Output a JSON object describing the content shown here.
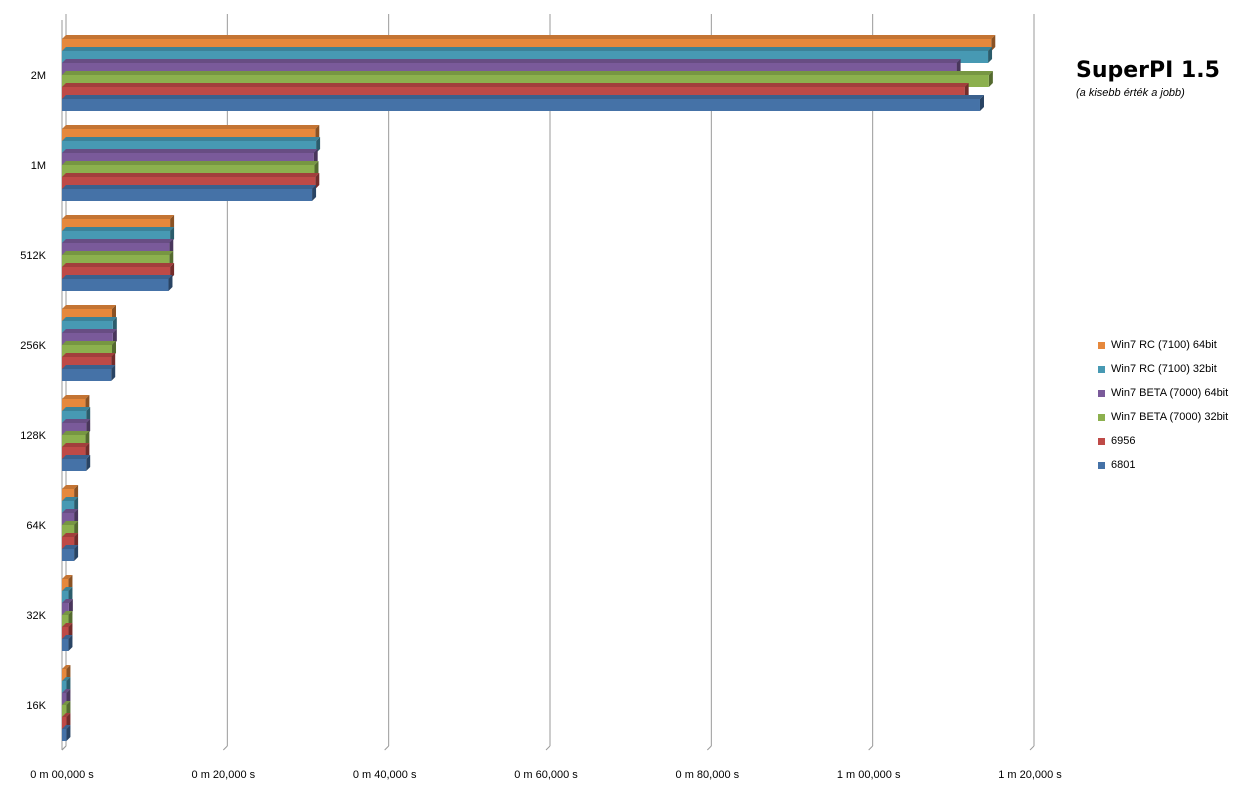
{
  "chart_data": {
    "type": "bar",
    "orientation": "horizontal",
    "title": "SuperPI 1.5",
    "subtitle": "(a kisebb érték a jobb)",
    "categories": [
      "2M",
      "1M",
      "512K",
      "256K",
      "128K",
      "64K",
      "32K",
      "16K"
    ],
    "x_tick_labels": [
      "0 m 00,000 s",
      "0 m 20,000 s",
      "0 m 40,000 s",
      "0 m 60,000 s",
      "0 m 80,000 s",
      "1 m 00,000 s",
      "1 m 20,000 s"
    ],
    "xlim": [
      0,
      120
    ],
    "x_unit": "seconds",
    "grid": true,
    "legend_position": "right",
    "series": [
      {
        "name": "Win7 RC (7100) 64bit",
        "color": "#E6883C",
        "values": [
          115.2,
          31.4,
          13.4,
          6.2,
          2.9,
          1.5,
          0.8,
          0.55
        ]
      },
      {
        "name": "Win7 RC (7100) 32bit",
        "color": "#4799B3",
        "values": [
          114.8,
          31.5,
          13.4,
          6.3,
          3.0,
          1.5,
          0.8,
          0.55
        ]
      },
      {
        "name": "Win7 BETA (7000) 64bit",
        "color": "#7A5A9A",
        "values": [
          110.9,
          31.2,
          13.3,
          6.3,
          3.0,
          1.5,
          0.85,
          0.55
        ]
      },
      {
        "name": "Win7 BETA (7000) 32bit",
        "color": "#8CB04E",
        "values": [
          114.9,
          31.3,
          13.3,
          6.2,
          2.9,
          1.5,
          0.8,
          0.55
        ]
      },
      {
        "name": "6956",
        "color": "#BF4A47",
        "values": [
          111.9,
          31.4,
          13.4,
          6.1,
          2.9,
          1.5,
          0.8,
          0.55
        ]
      },
      {
        "name": "6801",
        "color": "#4572A7",
        "values": [
          113.8,
          31.0,
          13.2,
          6.1,
          3.0,
          1.5,
          0.8,
          0.55
        ]
      }
    ]
  }
}
